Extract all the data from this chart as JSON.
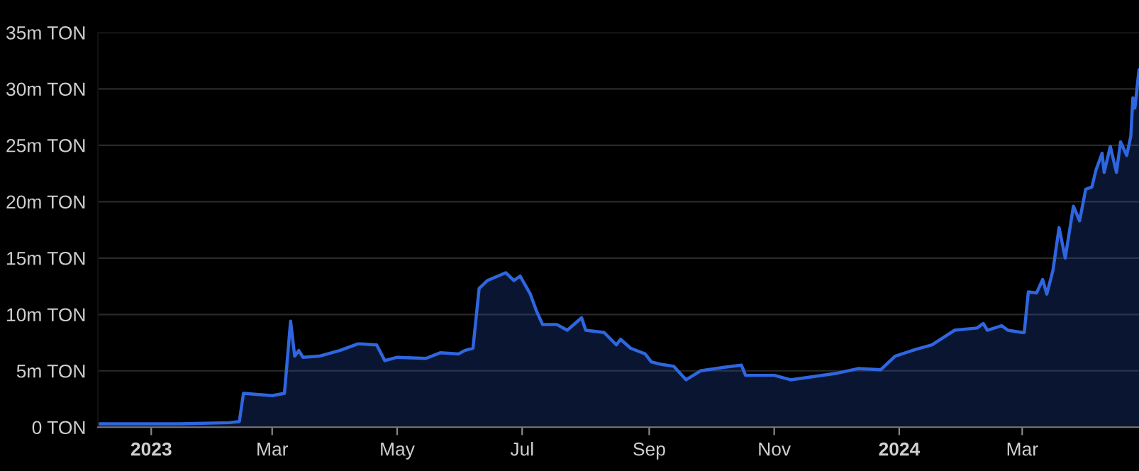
{
  "chart_data": {
    "type": "area",
    "x": [
      "2022-12-06",
      "2023-01-15",
      "2023-02-08",
      "2023-02-13",
      "2023-02-15",
      "2023-03-01",
      "2023-03-07",
      "2023-03-10",
      "2023-03-12",
      "2023-03-14",
      "2023-03-16",
      "2023-03-24",
      "2023-04-03",
      "2023-04-12",
      "2023-04-21",
      "2023-04-25",
      "2023-05-01",
      "2023-05-15",
      "2023-05-22",
      "2023-05-31",
      "2023-06-03",
      "2023-06-07",
      "2023-06-10",
      "2023-06-14",
      "2023-06-23",
      "2023-06-27",
      "2023-06-30",
      "2023-07-05",
      "2023-07-08",
      "2023-07-11",
      "2023-07-18",
      "2023-07-23",
      "2023-07-30",
      "2023-08-01",
      "2023-08-10",
      "2023-08-16",
      "2023-08-18",
      "2023-08-23",
      "2023-08-30",
      "2023-09-02",
      "2023-09-06",
      "2023-09-13",
      "2023-09-19",
      "2023-09-26",
      "2023-10-07",
      "2023-10-16",
      "2023-10-18",
      "2023-11-01",
      "2023-11-09",
      "2023-12-02",
      "2023-12-12",
      "2023-12-23",
      "2023-12-30",
      "2024-01-09",
      "2024-01-17",
      "2024-01-28",
      "2024-02-08",
      "2024-02-11",
      "2024-02-13",
      "2024-02-20",
      "2024-02-23",
      "2024-03-01",
      "2024-03-02",
      "2024-03-04",
      "2024-03-08",
      "2024-03-11",
      "2024-03-13",
      "2024-03-16",
      "2024-03-19",
      "2024-03-22",
      "2024-03-26",
      "2024-03-29",
      "2024-04-01",
      "2024-04-04",
      "2024-04-06",
      "2024-04-09",
      "2024-04-10",
      "2024-04-13",
      "2024-04-16",
      "2024-04-18",
      "2024-04-21",
      "2024-04-23",
      "2024-04-24",
      "2024-04-25",
      "2024-04-27"
    ],
    "series": [
      {
        "color": "#2f66e0",
        "values": [
          0.3,
          0.3,
          0.4,
          0.5,
          3.0,
          2.8,
          3.0,
          9.4,
          6.3,
          6.8,
          6.2,
          6.3,
          6.8,
          7.4,
          7.3,
          5.9,
          6.2,
          6.1,
          6.6,
          6.5,
          6.8,
          7.0,
          12.3,
          13.0,
          13.7,
          13.0,
          13.4,
          11.8,
          10.3,
          9.1,
          9.1,
          8.6,
          9.7,
          8.6,
          8.4,
          7.3,
          7.8,
          7.0,
          6.5,
          5.8,
          5.6,
          5.4,
          4.2,
          5.0,
          5.3,
          5.5,
          4.6,
          4.6,
          4.2,
          4.8,
          5.2,
          5.1,
          6.3,
          6.9,
          7.3,
          8.6,
          8.8,
          9.2,
          8.6,
          9.0,
          8.6,
          8.4,
          8.4,
          12.0,
          11.9,
          13.1,
          11.8,
          13.9,
          17.7,
          15.0,
          19.6,
          18.3,
          21.1,
          21.3,
          22.8,
          24.3,
          22.6,
          24.9,
          22.6,
          25.3,
          24.1,
          25.8,
          29.2,
          28.3,
          31.7
        ]
      }
    ],
    "xlim": [
      "2022-12-06",
      "2024-04-27"
    ],
    "xticks": [
      {
        "value": "2023-01-01",
        "label": "2023"
      },
      {
        "value": "2023-03-01",
        "label": "Mar"
      },
      {
        "value": "2023-05-01",
        "label": "May"
      },
      {
        "value": "2023-07-01",
        "label": "Jul"
      },
      {
        "value": "2023-09-01",
        "label": "Sep"
      },
      {
        "value": "2023-11-01",
        "label": "Nov"
      },
      {
        "value": "2024-01-01",
        "label": "2024"
      },
      {
        "value": "2024-03-01",
        "label": "Mar"
      }
    ],
    "ylim": [
      0,
      35
    ],
    "yticks": [
      {
        "value": 0,
        "label": "0 TON"
      },
      {
        "value": 5,
        "label": "5m TON"
      },
      {
        "value": 10,
        "label": "10m TON"
      },
      {
        "value": 15,
        "label": "15m TON"
      },
      {
        "value": 20,
        "label": "20m TON"
      },
      {
        "value": 25,
        "label": "25m TON"
      },
      {
        "value": 30,
        "label": "30m TON"
      },
      {
        "value": 35,
        "label": "35m TON"
      }
    ],
    "grid": "y"
  }
}
